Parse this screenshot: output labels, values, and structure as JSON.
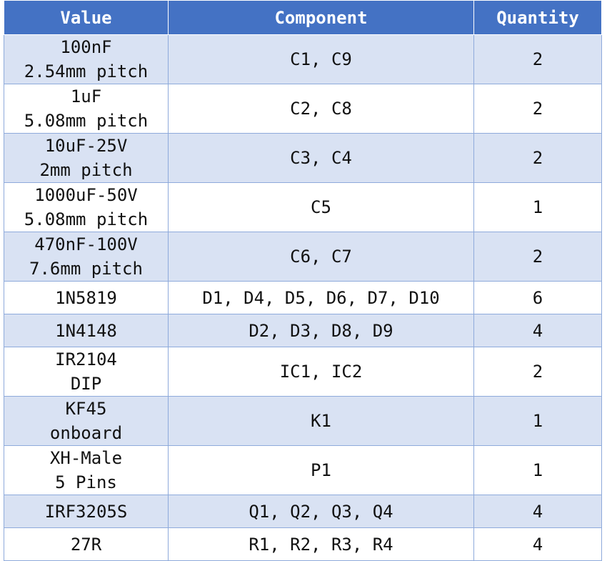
{
  "headers": {
    "value": "Value",
    "component": "Component",
    "quantity": "Quantity"
  },
  "rows": [
    {
      "value": [
        "100nF",
        "2.54mm pitch"
      ],
      "component": "C1, C9",
      "quantity": "2"
    },
    {
      "value": [
        "1uF",
        "5.08mm pitch"
      ],
      "component": "C2, C8",
      "quantity": "2"
    },
    {
      "value": [
        "10uF-25V",
        "2mm pitch"
      ],
      "component": "C3, C4",
      "quantity": "2"
    },
    {
      "value": [
        "1000uF-50V",
        "5.08mm pitch"
      ],
      "component": "C5",
      "quantity": "1"
    },
    {
      "value": [
        "470nF-100V",
        "7.6mm pitch"
      ],
      "component": "C6, C7",
      "quantity": "2"
    },
    {
      "value": [
        "1N5819"
      ],
      "component": "D1, D4, D5, D6, D7, D10",
      "quantity": "6"
    },
    {
      "value": [
        "1N4148"
      ],
      "component": "D2, D3, D8, D9",
      "quantity": "4"
    },
    {
      "value": [
        "IR2104",
        "DIP"
      ],
      "component": "IC1, IC2",
      "quantity": "2"
    },
    {
      "value": [
        "KF45",
        "onboard"
      ],
      "component": "K1",
      "quantity": "1"
    },
    {
      "value": [
        "XH-Male",
        "5 Pins"
      ],
      "component": "P1",
      "quantity": "1"
    },
    {
      "value": [
        "IRF3205S"
      ],
      "component": "Q1, Q2, Q3, Q4",
      "quantity": "4"
    },
    {
      "value": [
        "27R"
      ],
      "component": "R1, R2, R3, R4",
      "quantity": "4"
    }
  ]
}
